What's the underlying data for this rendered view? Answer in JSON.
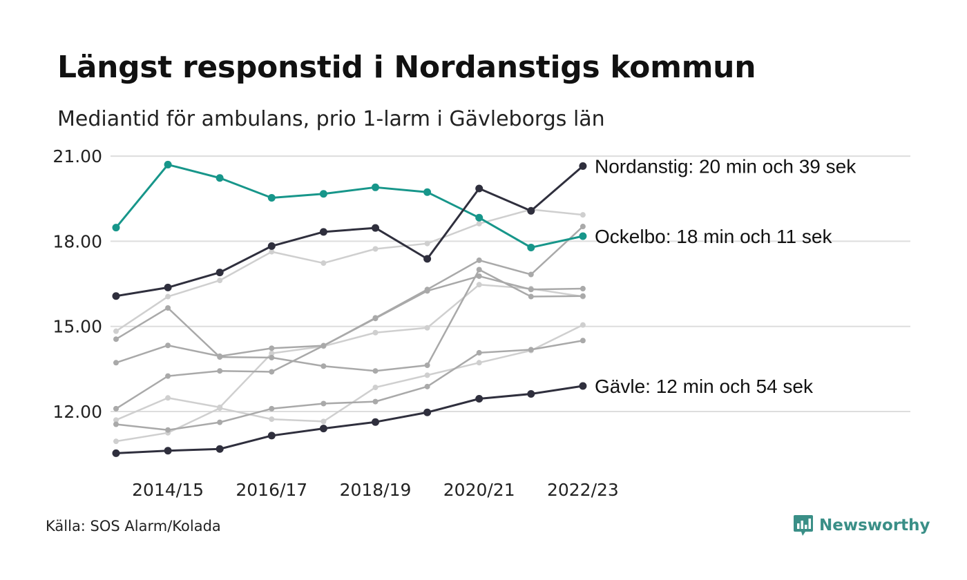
{
  "title": "Längst responstid i Nordanstigs kommun",
  "subtitle": "Mediantid för ambulans, prio 1-larm i Gävleborgs län",
  "source": "Källa: SOS Alarm/Kolada",
  "brand": {
    "name": "Newsworthy",
    "icon": "newsworthy-logo-icon",
    "color": "#3a8f87"
  },
  "colors": {
    "highlight": "#2f2f3d",
    "accent": "#17968a",
    "other_dark": "#a9a9a9",
    "other_light": "#cfcfcf",
    "grid": "#dddddd"
  },
  "chart_data": {
    "type": "line",
    "x": [
      "2013/14",
      "2014/15",
      "2015/16",
      "2016/17",
      "2017/18",
      "2018/19",
      "2019/20",
      "2020/21",
      "2021/22",
      "2022/23"
    ],
    "x_tick_labels": [
      "2014/15",
      "2016/17",
      "2018/19",
      "2020/21",
      "2022/23"
    ],
    "y_tick_labels": [
      "12.00",
      "15.00",
      "18.00",
      "21.00"
    ],
    "ylim": [
      10.2,
      21.3
    ],
    "grid": true,
    "series": [
      {
        "role": "highlight",
        "name": "Nordanstig: 20 min och 39 sek",
        "values": [
          16.07,
          16.37,
          16.9,
          17.83,
          18.33,
          18.47,
          17.38,
          19.86,
          19.07,
          20.65
        ]
      },
      {
        "role": "accent",
        "name": "Ockelbo: 18 min och 11 sek",
        "values": [
          18.48,
          20.7,
          20.23,
          19.53,
          19.67,
          19.9,
          19.73,
          18.83,
          17.78,
          18.18
        ]
      },
      {
        "role": "highlight",
        "name": "Gävle: 12 min och 54 sek",
        "values": [
          10.53,
          10.62,
          10.68,
          11.15,
          11.4,
          11.63,
          11.97,
          12.45,
          12.62,
          12.9
        ]
      },
      {
        "role": "other_light",
        "values": [
          14.83,
          16.05,
          16.62,
          17.63,
          17.23,
          17.73,
          17.92,
          18.62,
          19.12,
          18.93
        ]
      },
      {
        "role": "other_dark",
        "values": [
          14.55,
          15.65,
          13.92,
          13.9,
          13.6,
          13.43,
          13.63,
          17.0,
          16.05,
          16.07
        ]
      },
      {
        "role": "other_dark",
        "values": [
          13.72,
          14.33,
          13.95,
          14.23,
          14.32,
          15.3,
          16.3,
          17.33,
          16.83,
          18.52
        ]
      },
      {
        "role": "other_dark",
        "values": [
          12.1,
          13.25,
          13.43,
          13.4,
          14.32,
          15.28,
          16.25,
          16.77,
          16.3,
          16.33
        ]
      },
      {
        "role": "other_light",
        "values": [
          11.7,
          12.48,
          12.15,
          14.05,
          14.3,
          14.78,
          14.95,
          16.47,
          16.33,
          16.05
        ]
      },
      {
        "role": "other_dark",
        "values": [
          11.55,
          11.35,
          11.62,
          12.1,
          12.28,
          12.35,
          12.88,
          14.07,
          14.18,
          14.5
        ]
      },
      {
        "role": "other_light",
        "values": [
          10.95,
          11.25,
          12.12,
          11.73,
          11.65,
          12.85,
          13.28,
          13.72,
          14.15,
          15.05
        ]
      }
    ]
  }
}
